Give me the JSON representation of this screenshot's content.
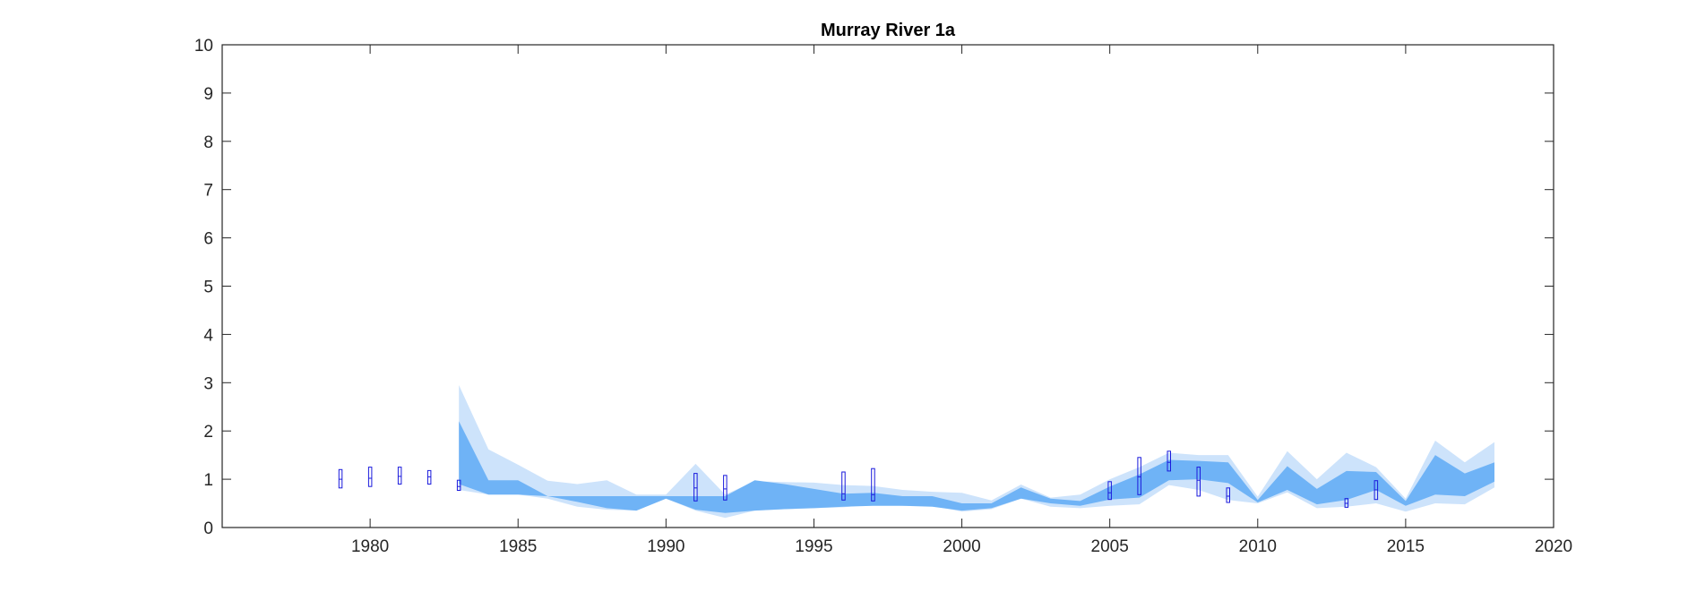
{
  "chart_data": {
    "type": "area",
    "title": "Murray River 1a",
    "xlabel": "",
    "ylabel": "",
    "xlim": [
      1975,
      2020
    ],
    "ylim": [
      0,
      10
    ],
    "xticks": [
      1980,
      1985,
      1990,
      1995,
      2000,
      2005,
      2010,
      2015,
      2020
    ],
    "yticks": [
      0,
      1,
      2,
      3,
      4,
      5,
      6,
      7,
      8,
      9,
      10
    ],
    "grid": false,
    "legend": "none",
    "colors": {
      "outer_band": "#cde3fb",
      "inner_band": "#6fb3f6",
      "box_outline": "#1a1adc",
      "axis": "#262626",
      "text": "#262626"
    },
    "series": [
      {
        "type": "area",
        "x": [
          1983,
          1984,
          1985,
          1986,
          1987,
          1988,
          1989,
          1990,
          1991,
          1992,
          1993,
          1994,
          1995,
          1996,
          1997,
          1998,
          1999,
          2000,
          2001,
          2002,
          2003,
          2004,
          2005,
          2006,
          2007,
          2008,
          2009,
          2010,
          2011,
          2012,
          2013,
          2014,
          2015,
          2016,
          2017,
          2018
        ],
        "upper": [
          2.95,
          1.62,
          1.3,
          0.97,
          0.9,
          0.98,
          0.68,
          0.68,
          1.32,
          0.68,
          0.96,
          0.94,
          0.93,
          0.88,
          0.86,
          0.78,
          0.74,
          0.72,
          0.56,
          0.89,
          0.62,
          0.68,
          1.0,
          1.25,
          1.55,
          1.5,
          1.5,
          0.64,
          1.58,
          1.0,
          1.55,
          1.25,
          0.6,
          1.8,
          1.35,
          1.77
        ],
        "lower": [
          0.78,
          0.68,
          0.68,
          0.6,
          0.43,
          0.37,
          0.35,
          0.6,
          0.35,
          0.2,
          0.35,
          0.38,
          0.4,
          0.42,
          0.48,
          0.45,
          0.45,
          0.33,
          0.38,
          0.6,
          0.43,
          0.4,
          0.45,
          0.48,
          0.88,
          0.78,
          0.57,
          0.5,
          0.73,
          0.4,
          0.43,
          0.5,
          0.33,
          0.5,
          0.48,
          0.83
        ]
      },
      {
        "type": "area",
        "x": [
          1983,
          1984,
          1985,
          1986,
          1987,
          1988,
          1989,
          1990,
          1991,
          1992,
          1993,
          1994,
          1995,
          1996,
          1997,
          1998,
          1999,
          2000,
          2001,
          2002,
          2003,
          2004,
          2005,
          2006,
          2007,
          2008,
          2009,
          2010,
          2011,
          2012,
          2013,
          2014,
          2015,
          2016,
          2017,
          2018
        ],
        "upper": [
          2.2,
          0.98,
          0.98,
          0.65,
          0.65,
          0.65,
          0.65,
          0.65,
          0.65,
          0.65,
          0.98,
          0.9,
          0.8,
          0.7,
          0.72,
          0.65,
          0.65,
          0.5,
          0.5,
          0.83,
          0.6,
          0.55,
          0.85,
          1.1,
          1.4,
          1.38,
          1.35,
          0.57,
          1.27,
          0.8,
          1.17,
          1.15,
          0.55,
          1.5,
          1.12,
          1.35
        ],
        "lower": [
          0.9,
          0.68,
          0.68,
          0.65,
          0.53,
          0.4,
          0.35,
          0.6,
          0.37,
          0.3,
          0.35,
          0.38,
          0.4,
          0.43,
          0.45,
          0.45,
          0.43,
          0.35,
          0.4,
          0.6,
          0.5,
          0.45,
          0.58,
          0.62,
          0.98,
          1.0,
          0.92,
          0.52,
          0.78,
          0.48,
          0.57,
          0.78,
          0.45,
          0.68,
          0.65,
          0.95
        ]
      },
      {
        "type": "box",
        "points": [
          {
            "x": 1979,
            "low": 0.82,
            "mid": 1.0,
            "high": 1.2
          },
          {
            "x": 1980,
            "low": 0.85,
            "mid": 1.02,
            "high": 1.25
          },
          {
            "x": 1981,
            "low": 0.9,
            "mid": 1.06,
            "high": 1.25
          },
          {
            "x": 1982,
            "low": 0.9,
            "mid": 1.05,
            "high": 1.18
          },
          {
            "x": 1983,
            "low": 0.77,
            "mid": 0.85,
            "high": 0.98
          },
          {
            "x": 1991,
            "low": 0.55,
            "mid": 0.82,
            "high": 1.12
          },
          {
            "x": 1992,
            "low": 0.57,
            "mid": 0.8,
            "high": 1.08
          },
          {
            "x": 1996,
            "low": 0.57,
            "mid": 0.7,
            "high": 1.15
          },
          {
            "x": 1997,
            "low": 0.55,
            "mid": 0.68,
            "high": 1.22
          },
          {
            "x": 2005,
            "low": 0.58,
            "mid": 0.72,
            "high": 0.95
          },
          {
            "x": 2006,
            "low": 0.68,
            "mid": 1.05,
            "high": 1.45
          },
          {
            "x": 2007,
            "low": 1.17,
            "mid": 1.35,
            "high": 1.58
          },
          {
            "x": 2008,
            "low": 0.65,
            "mid": 0.98,
            "high": 1.25
          },
          {
            "x": 2009,
            "low": 0.52,
            "mid": 0.65,
            "high": 0.82
          },
          {
            "x": 2013,
            "low": 0.42,
            "mid": 0.5,
            "high": 0.6
          },
          {
            "x": 2014,
            "low": 0.58,
            "mid": 0.78,
            "high": 0.97
          }
        ]
      }
    ]
  }
}
